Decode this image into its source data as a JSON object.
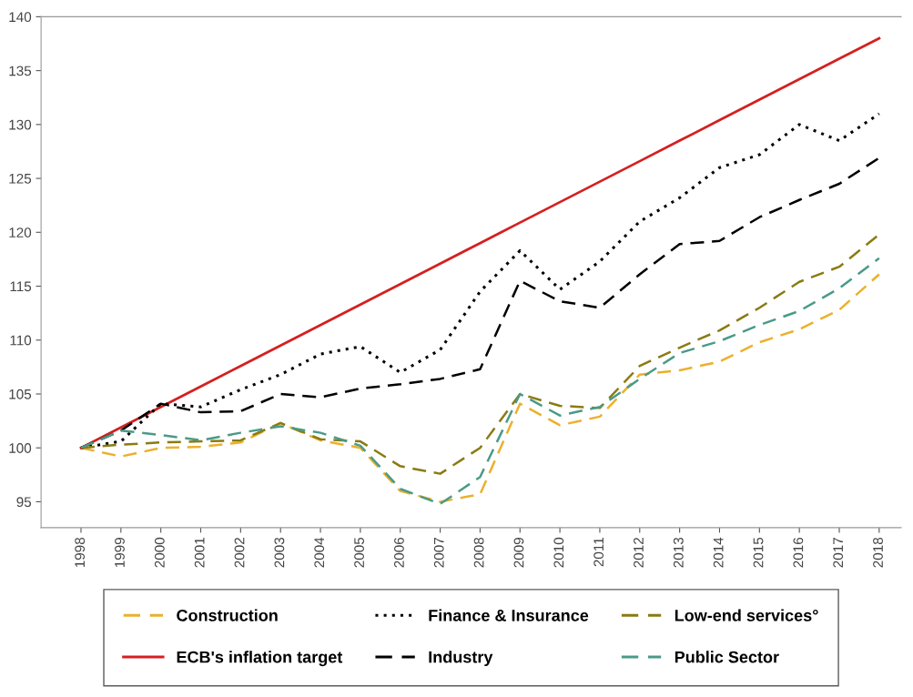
{
  "chart_data": {
    "type": "line",
    "categories": [
      "1998",
      "1999",
      "2000",
      "2001",
      "2002",
      "2003",
      "2004",
      "2005",
      "2006",
      "2007",
      "2008",
      "2009",
      "2010",
      "2011",
      "2012",
      "2013",
      "2014",
      "2015",
      "2016",
      "2017",
      "2018"
    ],
    "series": [
      {
        "name": "Construction",
        "color": "#ebb02d",
        "line_style": "dashed",
        "values": [
          100,
          99.2,
          100.0,
          100.1,
          100.5,
          102.3,
          100.7,
          100.0,
          96.0,
          95.0,
          95.7,
          104.1,
          102.1,
          102.9,
          106.8,
          107.2,
          108.0,
          109.8,
          111.0,
          112.8,
          116.1
        ]
      },
      {
        "name": "ECB's inflation target",
        "color": "#d42020",
        "line_style": "solid",
        "values": [
          100,
          101.9,
          103.8,
          105.7,
          107.6,
          109.5,
          111.4,
          113.3,
          115.2,
          117.1,
          119.0,
          120.9,
          122.8,
          124.7,
          126.6,
          128.5,
          130.4,
          132.3,
          134.2,
          136.1,
          138.0
        ]
      },
      {
        "name": "Finance & Insurance",
        "color": "#000000",
        "line_style": "dotted",
        "values": [
          100,
          100.6,
          104.1,
          103.8,
          105.4,
          106.8,
          108.7,
          109.4,
          107.0,
          109.1,
          114.5,
          118.3,
          114.7,
          117.3,
          121.0,
          123.2,
          126.0,
          127.2,
          130.0,
          128.5,
          131.0
        ]
      },
      {
        "name": "Industry",
        "color": "#000000",
        "line_style": "dashed",
        "values": [
          100,
          101.6,
          104.1,
          103.3,
          103.4,
          105.0,
          104.7,
          105.5,
          105.9,
          106.4,
          107.3,
          115.5,
          113.6,
          113.0,
          116.1,
          118.9,
          119.2,
          121.4,
          123.0,
          124.5,
          126.9
        ]
      },
      {
        "name": "Low-end services°",
        "color": "#8a7b12",
        "line_style": "dashed",
        "values": [
          100,
          100.3,
          100.5,
          100.6,
          100.7,
          102.3,
          100.8,
          100.6,
          98.3,
          97.6,
          100.0,
          105.0,
          103.9,
          103.7,
          107.6,
          109.3,
          110.9,
          113.0,
          115.4,
          116.8,
          119.8
        ]
      },
      {
        "name": "Public Sector",
        "color": "#4a9a88",
        "line_style": "dashed",
        "values": [
          100,
          101.6,
          101.2,
          100.7,
          101.4,
          102.0,
          101.4,
          100.2,
          96.2,
          94.8,
          97.3,
          105.0,
          103.0,
          103.8,
          106.4,
          108.8,
          109.9,
          111.4,
          112.7,
          114.8,
          117.6
        ]
      }
    ],
    "ylim": [
      92.6,
      140
    ],
    "yticks": [
      95,
      100,
      105,
      110,
      115,
      120,
      125,
      130,
      135,
      140
    ],
    "grid": false,
    "legend": "bottom",
    "marker": "none"
  }
}
